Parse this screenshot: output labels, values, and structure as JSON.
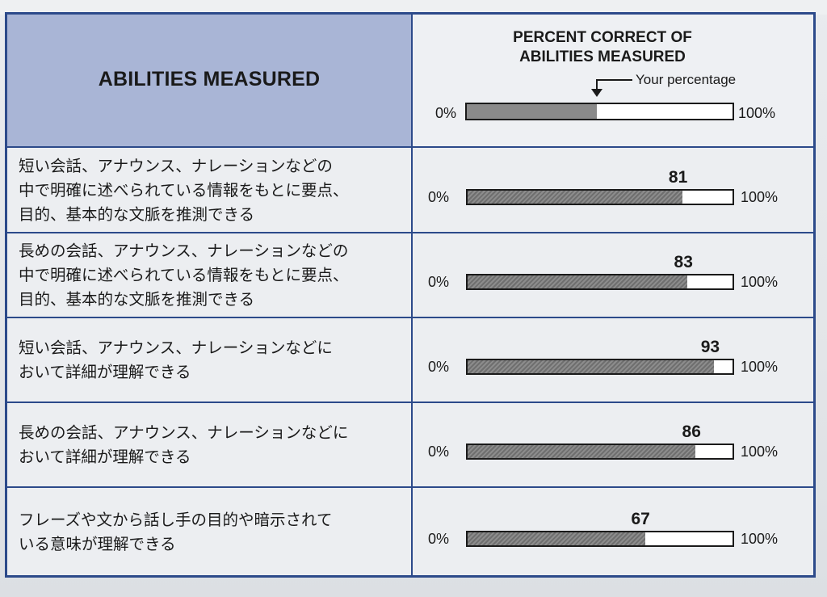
{
  "header": {
    "abilities_title": "ABILITIES MEASURED",
    "percent_title_line1": "PERCENT CORRECT OF",
    "percent_title_line2": "ABILITIES MEASURED",
    "your_percentage_label": "Your percentage",
    "legend_min": "0%",
    "legend_max": "100%",
    "legend_fill_fraction": 0.49
  },
  "rows": [
    {
      "lines": [
        "短い会話、アナウンス、ナレーションなどの",
        "中で明確に述べられている情報をもとに要点、",
        "目的、基本的な文脈を推測できる"
      ],
      "score": "81",
      "fraction": 0.81,
      "min": "0%",
      "max": "100%"
    },
    {
      "lines": [
        "長めの会話、アナウンス、ナレーションなどの",
        "中で明確に述べられている情報をもとに要点、",
        "目的、基本的な文脈を推測できる"
      ],
      "score": "83",
      "fraction": 0.83,
      "min": "0%",
      "max": "100%"
    },
    {
      "lines": [
        "短い会話、アナウンス、ナレーションなどに",
        "おいて詳細が理解できる"
      ],
      "score": "93",
      "fraction": 0.93,
      "min": "0%",
      "max": "100%"
    },
    {
      "lines": [
        "長めの会話、アナウンス、ナレーションなどに",
        "おいて詳細が理解できる"
      ],
      "score": "86",
      "fraction": 0.86,
      "min": "0%",
      "max": "100%"
    },
    {
      "lines": [
        "フレーズや文から話し手の目的や暗示されて",
        "いる意味が理解できる"
      ],
      "score": "67",
      "fraction": 0.67,
      "min": "0%",
      "max": "100%"
    }
  ]
}
